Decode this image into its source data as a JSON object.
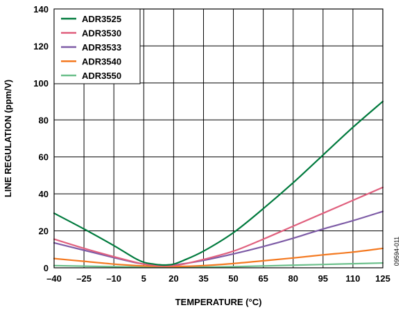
{
  "chart_data": {
    "type": "line",
    "title": "",
    "xlabel": "TEMPERATURE (°C)",
    "ylabel": "LINE REGULATION (ppm/V)",
    "xlim": [
      -40,
      125
    ],
    "ylim": [
      0,
      140
    ],
    "xticks": [
      -40,
      -25,
      -10,
      5,
      20,
      35,
      50,
      65,
      80,
      95,
      110,
      125
    ],
    "xtick_labels": [
      "–40",
      "–25",
      "–10",
      "5",
      "20",
      "35",
      "50",
      "65",
      "80",
      "95",
      "110",
      "125"
    ],
    "yticks": [
      0,
      20,
      40,
      60,
      80,
      100,
      120,
      140
    ],
    "ytick_labels": [
      "0",
      "20",
      "40",
      "60",
      "80",
      "100",
      "120",
      "140"
    ],
    "grid": true,
    "legend_position": "top-left",
    "figure_id": "09594-011",
    "series": [
      {
        "name": "ADR3525",
        "color": "#007a3d",
        "x": [
          -40,
          -25,
          -10,
          0,
          5,
          10,
          15,
          20,
          25,
          35,
          50,
          65,
          80,
          95,
          110,
          125
        ],
        "y": [
          29.5,
          21,
          12,
          5.5,
          3,
          2,
          1.5,
          2,
          4,
          9,
          19,
          32,
          46,
          61,
          76,
          90
        ]
      },
      {
        "name": "ADR3530",
        "color": "#e0607e",
        "x": [
          -40,
          -25,
          -10,
          0,
          5,
          10,
          15,
          20,
          25,
          35,
          50,
          65,
          80,
          95,
          110,
          125
        ],
        "y": [
          15.5,
          10.5,
          6,
          3.2,
          2,
          1.3,
          1,
          1.2,
          2,
          4.5,
          9,
          15.5,
          22.5,
          29.5,
          36.5,
          43.5
        ]
      },
      {
        "name": "ADR3533",
        "color": "#7d5ba6",
        "x": [
          -40,
          -25,
          -10,
          0,
          5,
          10,
          15,
          20,
          25,
          35,
          50,
          65,
          80,
          95,
          110,
          125
        ],
        "y": [
          13.5,
          9.5,
          5.5,
          3,
          2,
          1.5,
          1.2,
          1.5,
          2.2,
          4,
          7.5,
          11.5,
          16,
          21,
          25.5,
          30.5
        ]
      },
      {
        "name": "ADR3540",
        "color": "#f47920",
        "x": [
          -40,
          -25,
          -10,
          5,
          20,
          35,
          50,
          65,
          80,
          95,
          110,
          125
        ],
        "y": [
          5,
          3.5,
          2,
          1,
          0.7,
          1.2,
          2.3,
          3.8,
          5.3,
          7,
          8.5,
          10.5
        ]
      },
      {
        "name": "ADR3550",
        "color": "#6abf8a",
        "x": [
          -40,
          -25,
          -10,
          5,
          20,
          35,
          50,
          65,
          80,
          95,
          110,
          125
        ],
        "y": [
          1.2,
          0.9,
          0.6,
          0.4,
          0.3,
          0.4,
          0.6,
          1,
          1.4,
          1.8,
          2.2,
          2.6
        ]
      }
    ]
  }
}
